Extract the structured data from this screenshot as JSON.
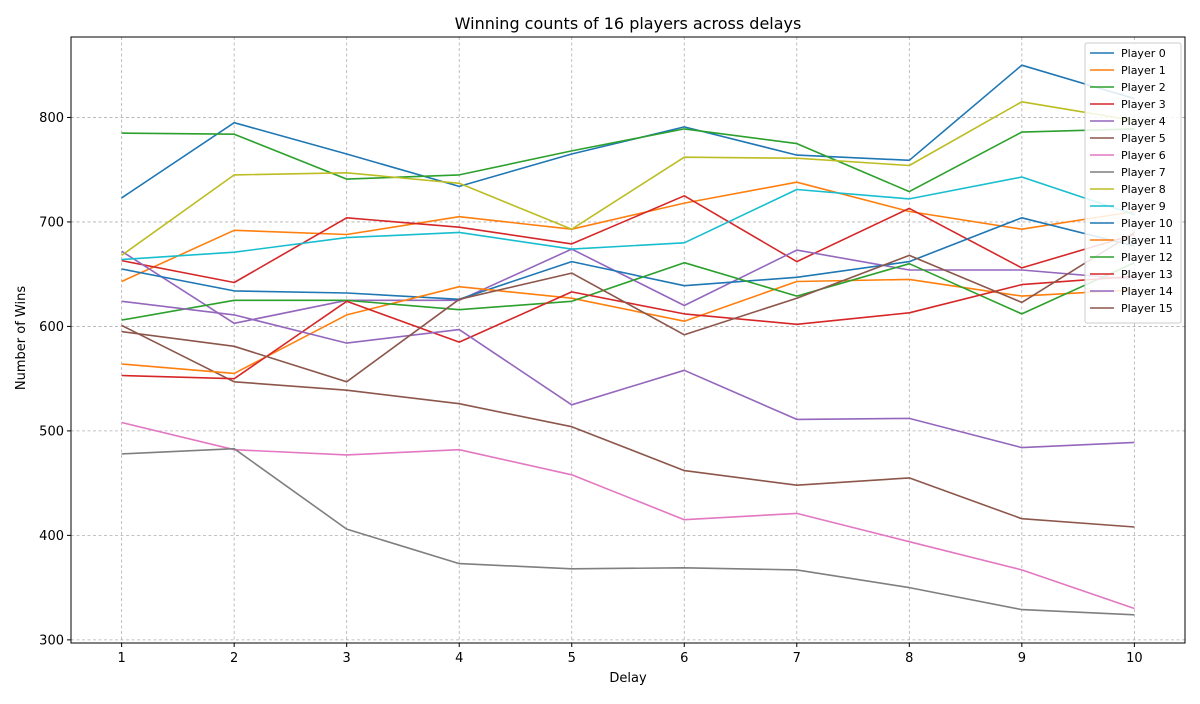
{
  "chart_data": {
    "type": "line",
    "title": "Winning counts of 16 players across delays",
    "xlabel": "Delay",
    "ylabel": "Number of Wins",
    "x": [
      1,
      2,
      3,
      4,
      5,
      6,
      7,
      8,
      9,
      10
    ],
    "xlim": [
      0.55,
      10.45
    ],
    "ylim": [
      297,
      877
    ],
    "yticks": [
      300,
      400,
      500,
      600,
      700,
      800
    ],
    "grid": true,
    "legend_position": "top-right",
    "series": [
      {
        "name": "Player 0",
        "color": "#1f77b4",
        "values": [
          723,
          795,
          765,
          734,
          765,
          791,
          764,
          759,
          850,
          818
        ]
      },
      {
        "name": "Player 1",
        "color": "#ff7f0e",
        "values": [
          643,
          692,
          688,
          705,
          693,
          718,
          738,
          710,
          693,
          710
        ]
      },
      {
        "name": "Player 2",
        "color": "#2ca02c",
        "values": [
          785,
          784,
          741,
          745,
          768,
          789,
          775,
          729,
          786,
          789
        ]
      },
      {
        "name": "Player 3",
        "color": "#d62728",
        "values": [
          663,
          642,
          704,
          695,
          679,
          725,
          662,
          713,
          656,
          688
        ]
      },
      {
        "name": "Player 4",
        "color": "#9467bd",
        "values": [
          672,
          603,
          625,
          625,
          674,
          620,
          673,
          654,
          654,
          645
        ]
      },
      {
        "name": "Player 5",
        "color": "#8c564b",
        "values": [
          601,
          547,
          539,
          526,
          504,
          462,
          448,
          455,
          416,
          408
        ]
      },
      {
        "name": "Player 6",
        "color": "#e377c2",
        "values": [
          508,
          482,
          477,
          482,
          458,
          415,
          421,
          394,
          367,
          330
        ]
      },
      {
        "name": "Player 7",
        "color": "#7f7f7f",
        "values": [
          478,
          483,
          406,
          373,
          368,
          369,
          367,
          350,
          329,
          324
        ]
      },
      {
        "name": "Player 8",
        "color": "#bcbd22",
        "values": [
          668,
          745,
          747,
          737,
          693,
          762,
          761,
          754,
          815,
          797
        ]
      },
      {
        "name": "Player 9",
        "color": "#17becf",
        "values": [
          664,
          671,
          685,
          690,
          674,
          680,
          731,
          722,
          743,
          707
        ]
      },
      {
        "name": "Player 10",
        "color": "#1f77b4",
        "values": [
          655,
          634,
          632,
          626,
          662,
          639,
          647,
          662,
          704,
          677
        ]
      },
      {
        "name": "Player 11",
        "color": "#ff7f0e",
        "values": [
          564,
          555,
          611,
          638,
          627,
          605,
          643,
          645,
          629,
          635
        ]
      },
      {
        "name": "Player 12",
        "color": "#2ca02c",
        "values": [
          606,
          625,
          625,
          616,
          624,
          661,
          629,
          660,
          612,
          661
        ]
      },
      {
        "name": "Player 13",
        "color": "#d62728",
        "values": [
          553,
          550,
          624,
          585,
          633,
          612,
          602,
          613,
          640,
          648
        ]
      },
      {
        "name": "Player 14",
        "color": "#9467bd",
        "values": [
          624,
          611,
          584,
          597,
          525,
          558,
          511,
          512,
          484,
          489
        ]
      },
      {
        "name": "Player 15",
        "color": "#8c564b",
        "values": [
          595,
          581,
          547,
          626,
          651,
          592,
          627,
          668,
          623,
          690
        ]
      }
    ]
  }
}
